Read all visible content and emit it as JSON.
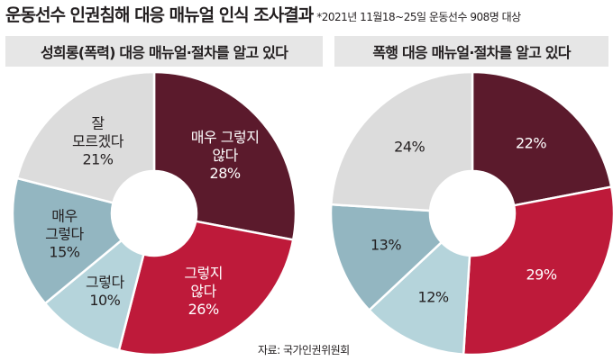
{
  "header": {
    "title": "운동선수 인권침해 대응 매뉴얼 인식 조사결과",
    "subtitle": "*2021년 11월18~25일 운동선수 908명 대상"
  },
  "source": "자료: 국가인권위원회",
  "colors": {
    "dark_maroon": "#5b1a2c",
    "crimson": "#be1a3a",
    "light_blue": "#b5d4db",
    "steel_blue": "#93b6c1",
    "light_gray": "#dcdcdc"
  },
  "chart_data": [
    {
      "type": "pie",
      "title": "성희롱(폭력) 대응 매뉴얼·절차를 알고 있다",
      "slices": [
        {
          "label": "매우 그렇지 않다",
          "value": 28,
          "display": "28%",
          "color": "#5b1a2c"
        },
        {
          "label": "그렇지 않다",
          "value": 26,
          "display": "26%",
          "color": "#be1a3a"
        },
        {
          "label": "그렇다",
          "value": 10,
          "display": "10%",
          "color": "#b5d4db"
        },
        {
          "label": "매우 그렇다",
          "value": 15,
          "display": "15%",
          "color": "#93b6c1"
        },
        {
          "label": "잘 모르겠다",
          "value": 21,
          "display": "21%",
          "color": "#dcdcdc"
        }
      ]
    },
    {
      "type": "pie",
      "title": "폭행 대응 매뉴얼·절차를 알고 있다",
      "slices": [
        {
          "label": "",
          "value": 22,
          "display": "22%",
          "color": "#5b1a2c"
        },
        {
          "label": "",
          "value": 29,
          "display": "29%",
          "color": "#be1a3a"
        },
        {
          "label": "",
          "value": 12,
          "display": "12%",
          "color": "#b5d4db"
        },
        {
          "label": "",
          "value": 13,
          "display": "13%",
          "color": "#93b6c1"
        },
        {
          "label": "",
          "value": 24,
          "display": "24%",
          "color": "#dcdcdc"
        }
      ]
    }
  ]
}
